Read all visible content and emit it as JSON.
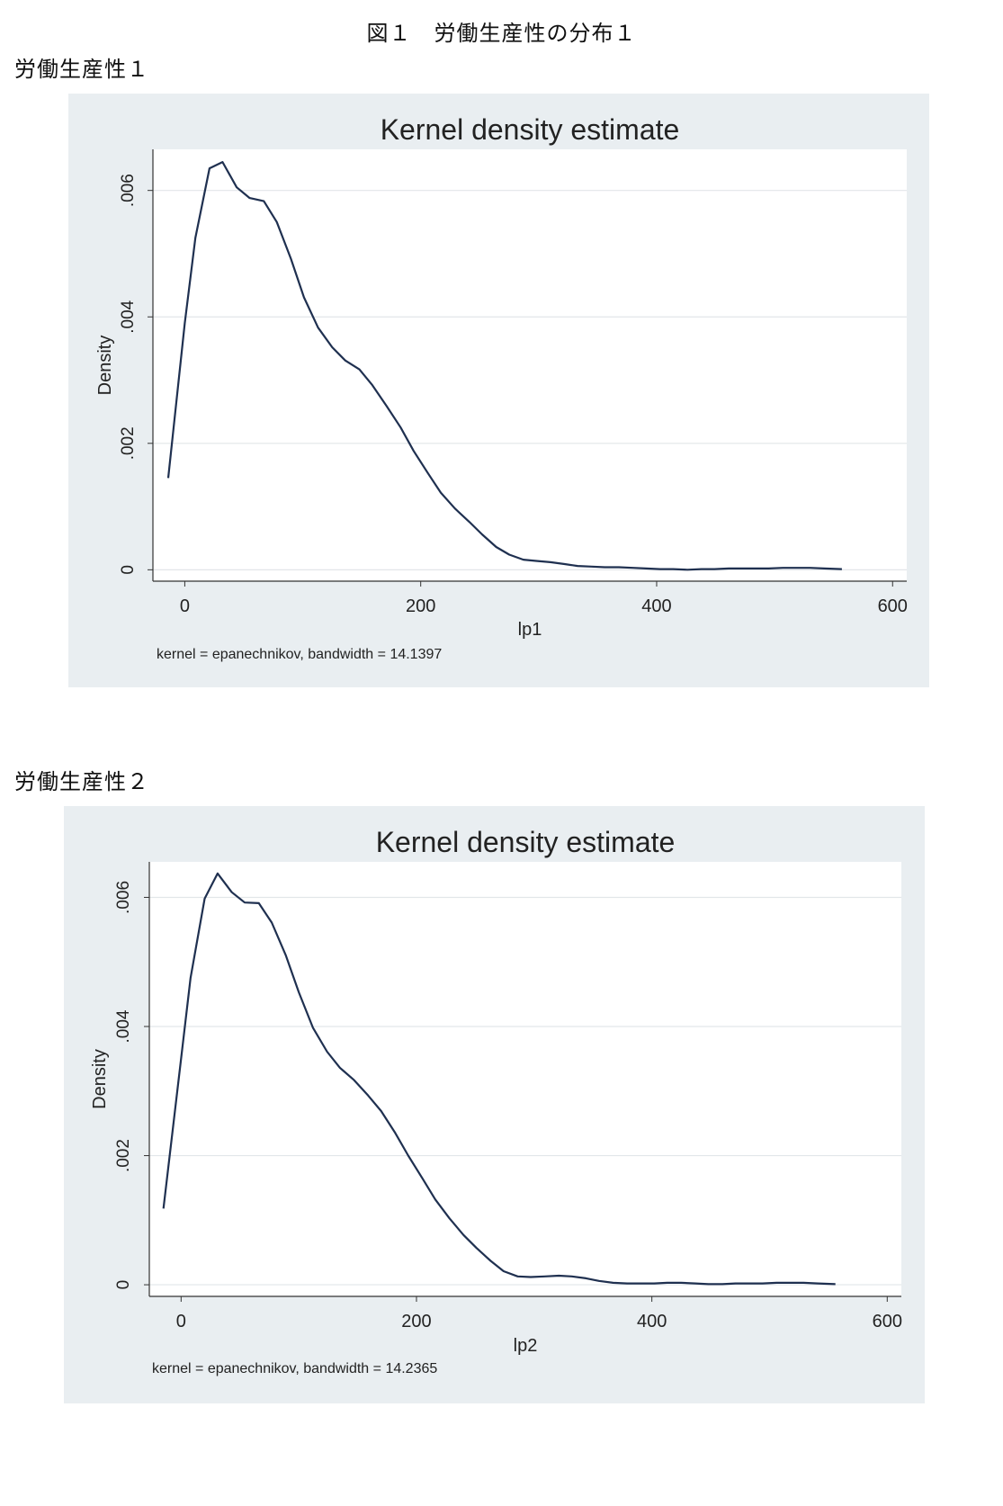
{
  "figure_title": "図１　労働生産性の分布１",
  "panels": [
    {
      "label": "労働生産性１"
    },
    {
      "label": "労働生産性２"
    }
  ],
  "colors": {
    "plotregion": "#e9eef1",
    "plotarea": "#ffffff",
    "line": "#1f3050",
    "grid": "#e2e6e9"
  },
  "chart_data": [
    {
      "type": "line",
      "title": "Kernel density estimate",
      "xlabel": "lp1",
      "ylabel": "Density",
      "note": "kernel = epanechnikov, bandwidth = 14.1397",
      "xlim": [
        -27,
        612
      ],
      "ylim": [
        -0.00018,
        0.00665
      ],
      "xticks": [
        0,
        200,
        400,
        600
      ],
      "xtick_labels": [
        "0",
        "200",
        "400",
        "600"
      ],
      "yticks": [
        0,
        0.002,
        0.004,
        0.006
      ],
      "ytick_labels": [
        "0",
        ".002",
        ".004",
        ".006"
      ],
      "grid": true,
      "series": [
        {
          "x": [
            -14,
            0,
            9,
            21,
            32,
            44,
            55,
            67,
            78,
            90,
            101,
            113,
            125,
            136,
            148,
            159,
            171,
            183,
            194,
            206,
            217,
            229,
            241,
            252,
            264,
            275,
            287,
            298,
            310,
            322,
            333,
            345,
            356,
            368,
            380,
            391,
            403,
            414,
            426,
            438,
            449,
            461,
            472,
            484,
            495,
            507,
            519,
            530,
            542,
            557
          ],
          "y": [
            0.00145,
            0.0039,
            0.00525,
            0.00635,
            0.00645,
            0.00605,
            0.00588,
            0.00583,
            0.0055,
            0.00492,
            0.00431,
            0.00383,
            0.00352,
            0.00331,
            0.00317,
            0.00292,
            0.00259,
            0.00225,
            0.00188,
            0.00153,
            0.00122,
            0.00097,
            0.00076,
            0.00056,
            0.00036,
            0.00024,
            0.00016,
            0.00014,
            0.00012,
            9e-05,
            6e-05,
            5e-05,
            4e-05,
            4e-05,
            3e-05,
            2e-05,
            1e-05,
            1e-05,
            0.0,
            1e-05,
            1e-05,
            2e-05,
            2e-05,
            2e-05,
            2e-05,
            3e-05,
            3e-05,
            3e-05,
            2e-05,
            1e-05
          ]
        }
      ]
    },
    {
      "type": "line",
      "title": "Kernel density estimate",
      "xlabel": "lp2",
      "ylabel": "Density",
      "note": "kernel = epanechnikov, bandwidth = 14.2365",
      "xlim": [
        -27,
        612
      ],
      "ylim": [
        -0.00018,
        0.00655
      ],
      "xticks": [
        0,
        200,
        400,
        600
      ],
      "xtick_labels": [
        "0",
        "200",
        "400",
        "600"
      ],
      "yticks": [
        0,
        0.002,
        0.004,
        0.006
      ],
      "ytick_labels": [
        "0",
        ".002",
        ".004",
        ".006"
      ],
      "grid": true,
      "series": [
        {
          "x": [
            -15,
            0,
            8,
            20,
            31,
            43,
            54,
            66,
            77,
            89,
            100,
            112,
            124,
            135,
            147,
            159,
            170,
            182,
            193,
            205,
            216,
            228,
            240,
            251,
            263,
            274,
            286,
            297,
            309,
            321,
            332,
            344,
            355,
            367,
            379,
            390,
            402,
            413,
            425,
            437,
            448,
            460,
            471,
            483,
            494,
            506,
            518,
            529,
            541,
            556
          ],
          "y": [
            0.00118,
            0.0035,
            0.00475,
            0.00598,
            0.00637,
            0.00608,
            0.00592,
            0.00591,
            0.00561,
            0.0051,
            0.00453,
            0.00398,
            0.00361,
            0.00336,
            0.00317,
            0.00293,
            0.00269,
            0.00235,
            0.002,
            0.00165,
            0.00132,
            0.00103,
            0.00077,
            0.00057,
            0.00037,
            0.00021,
            0.00013,
            0.00012,
            0.00013,
            0.00014,
            0.00013,
            0.0001,
            6e-05,
            3e-05,
            2e-05,
            2e-05,
            2e-05,
            3e-05,
            3e-05,
            2e-05,
            1e-05,
            1e-05,
            2e-05,
            2e-05,
            2e-05,
            3e-05,
            3e-05,
            3e-05,
            2e-05,
            1e-05
          ]
        }
      ]
    }
  ]
}
